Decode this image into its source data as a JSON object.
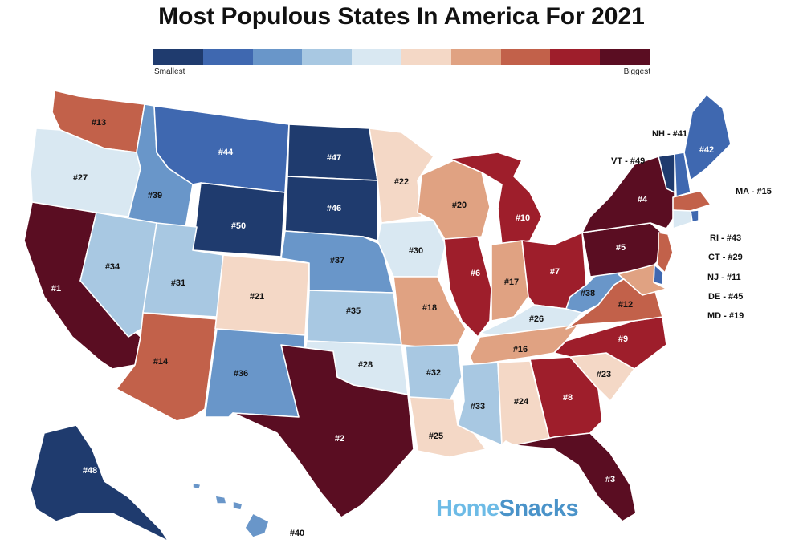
{
  "title": "Most Populous States In America For 2021",
  "legend": {
    "low_label": "Smallest",
    "high_label": "Biggest",
    "colors": [
      "#1f3b6e",
      "#3f68b0",
      "#6996c9",
      "#a8c8e2",
      "#d9e8f2",
      "#f4d8c6",
      "#e0a282",
      "#c2614a",
      "#9e1e2b",
      "#5a0d22"
    ]
  },
  "states": [
    {
      "id": "WA",
      "label": "#13",
      "rank": 13
    },
    {
      "id": "OR",
      "label": "#27",
      "rank": 27
    },
    {
      "id": "CA",
      "label": "#1",
      "rank": 1
    },
    {
      "id": "ID",
      "label": "#39",
      "rank": 39
    },
    {
      "id": "NV",
      "label": "#34",
      "rank": 34
    },
    {
      "id": "MT",
      "label": "#44",
      "rank": 44
    },
    {
      "id": "WY",
      "label": "#50",
      "rank": 50
    },
    {
      "id": "UT",
      "label": "#31",
      "rank": 31
    },
    {
      "id": "AZ",
      "label": "#14",
      "rank": 14
    },
    {
      "id": "CO",
      "label": "#21",
      "rank": 21
    },
    {
      "id": "NM",
      "label": "#36",
      "rank": 36
    },
    {
      "id": "ND",
      "label": "#47",
      "rank": 47
    },
    {
      "id": "SD",
      "label": "#46",
      "rank": 46
    },
    {
      "id": "NE",
      "label": "#37",
      "rank": 37
    },
    {
      "id": "KS",
      "label": "#35",
      "rank": 35
    },
    {
      "id": "OK",
      "label": "#28",
      "rank": 28
    },
    {
      "id": "TX",
      "label": "#2",
      "rank": 2
    },
    {
      "id": "MN",
      "label": "#22",
      "rank": 22
    },
    {
      "id": "IA",
      "label": "#30",
      "rank": 30
    },
    {
      "id": "MO",
      "label": "#18",
      "rank": 18
    },
    {
      "id": "AR",
      "label": "#32",
      "rank": 32
    },
    {
      "id": "LA",
      "label": "#25",
      "rank": 25
    },
    {
      "id": "WI",
      "label": "#20",
      "rank": 20
    },
    {
      "id": "IL",
      "label": "#6",
      "rank": 6
    },
    {
      "id": "MI",
      "label": "#10",
      "rank": 10
    },
    {
      "id": "IN",
      "label": "#17",
      "rank": 17
    },
    {
      "id": "OH",
      "label": "#7",
      "rank": 7
    },
    {
      "id": "KY",
      "label": "#26",
      "rank": 26
    },
    {
      "id": "TN",
      "label": "#16",
      "rank": 16
    },
    {
      "id": "MS",
      "label": "#33",
      "rank": 33
    },
    {
      "id": "AL",
      "label": "#24",
      "rank": 24
    },
    {
      "id": "GA",
      "label": "#8",
      "rank": 8
    },
    {
      "id": "FL",
      "label": "#3",
      "rank": 3
    },
    {
      "id": "SC",
      "label": "#23",
      "rank": 23
    },
    {
      "id": "NC",
      "label": "#9",
      "rank": 9
    },
    {
      "id": "VA",
      "label": "#12",
      "rank": 12
    },
    {
      "id": "WV",
      "label": "#38",
      "rank": 38
    },
    {
      "id": "PA",
      "label": "#5",
      "rank": 5
    },
    {
      "id": "NY",
      "label": "#4",
      "rank": 4
    },
    {
      "id": "VT",
      "label": "",
      "rank": 49
    },
    {
      "id": "NH",
      "label": "",
      "rank": 41
    },
    {
      "id": "ME",
      "label": "#42",
      "rank": 42
    },
    {
      "id": "MA",
      "label": "",
      "rank": 15
    },
    {
      "id": "RI",
      "label": "",
      "rank": 43
    },
    {
      "id": "CT",
      "label": "",
      "rank": 29
    },
    {
      "id": "NJ",
      "label": "",
      "rank": 11
    },
    {
      "id": "DE",
      "label": "",
      "rank": 45
    },
    {
      "id": "MD",
      "label": "",
      "rank": 19
    },
    {
      "id": "AK",
      "label": "#48",
      "rank": 48
    },
    {
      "id": "HI",
      "label": "#40",
      "rank": 40
    }
  ],
  "callouts": {
    "NH": "NH - #41",
    "VT": "VT - #49",
    "MA": "MA - #15",
    "RI": "RI - #43",
    "CT": "CT - #29",
    "NJ": "NJ - #11",
    "DE": "DE - #45",
    "MD": "MD - #19"
  },
  "brand": {
    "part1": "Home",
    "part2": "Snacks"
  }
}
